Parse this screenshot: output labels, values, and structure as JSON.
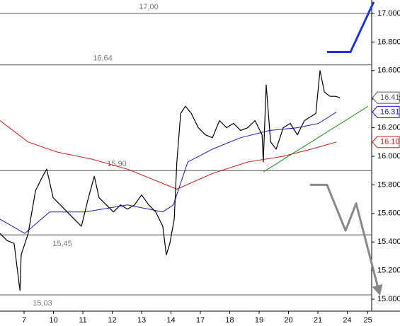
{
  "chart_data": {
    "type": "line",
    "xlim": [
      -0.82,
      11.83
    ],
    "ylim": [
      14.916,
      17.094
    ],
    "xticks": [
      {
        "value": 0,
        "label": "7"
      },
      {
        "value": 1,
        "label": "10"
      },
      {
        "value": 2,
        "label": "11"
      },
      {
        "value": 3,
        "label": "12"
      },
      {
        "value": 4,
        "label": "13"
      },
      {
        "value": 5,
        "label": "14"
      },
      {
        "value": 6,
        "label": "17"
      },
      {
        "value": 7,
        "label": "18"
      },
      {
        "value": 8,
        "label": "19"
      },
      {
        "value": 9,
        "label": "20"
      },
      {
        "value": 10,
        "label": "21"
      },
      {
        "value": 11,
        "label": "24"
      },
      {
        "value": 11.7,
        "label": "25"
      }
    ],
    "yticks": [
      {
        "value": 15,
        "label": "15.000"
      },
      {
        "value": 15.2,
        "label": "15.200"
      },
      {
        "value": 15.4,
        "label": "15.400"
      },
      {
        "value": 15.6,
        "label": "15.600"
      },
      {
        "value": 15.8,
        "label": "15.800"
      },
      {
        "value": 16,
        "label": "16.000"
      },
      {
        "value": 16.2,
        "label": "16.200"
      },
      {
        "value": 16.4,
        "label": "16.400"
      },
      {
        "value": 16.6,
        "label": "16.600"
      },
      {
        "value": 16.8,
        "label": "16.800"
      },
      {
        "value": 17,
        "label": "17.000"
      }
    ],
    "series": [
      {
        "color": "#000000",
        "x": [
          -0.82,
          -0.58,
          -0.34,
          -0.14,
          -0.1,
          0.14,
          0.39,
          0.63,
          0.77,
          0.99,
          1.23,
          1.47,
          1.71,
          1.95,
          2.19,
          2.39,
          2.55,
          2.8,
          3.04,
          3.28,
          3.52,
          3.76,
          4,
          4.24,
          4.48,
          4.72,
          4.84,
          4.96,
          5.11,
          5.2,
          5.33,
          5.49,
          5.69,
          5.93,
          6.17,
          6.41,
          6.65,
          6.89,
          7.13,
          7.37,
          7.61,
          7.86,
          8.1,
          8.14,
          8.24,
          8.39,
          8.58,
          8.82,
          9.06,
          9.3,
          9.54,
          9.78,
          9.93,
          10.07,
          10.22,
          10.41,
          10.6,
          10.75
        ],
        "values": [
          15.46,
          15.41,
          15.39,
          15.06,
          15.31,
          15.46,
          15.76,
          15.86,
          15.91,
          15.71,
          15.66,
          15.61,
          15.56,
          15.51,
          15.71,
          15.86,
          15.71,
          15.66,
          15.61,
          15.66,
          15.63,
          15.66,
          15.73,
          15.66,
          15.61,
          15.51,
          15.31,
          15.39,
          15.56,
          15.96,
          16.3,
          16.35,
          16.3,
          16.2,
          16.15,
          16.13,
          16.25,
          16.2,
          16.23,
          16.18,
          16.2,
          16.25,
          16.15,
          15.96,
          16.5,
          16.1,
          16.05,
          16.2,
          16.23,
          16.15,
          16.25,
          16.28,
          16.3,
          16.6,
          16.45,
          16.42,
          16.42,
          16.41
        ]
      },
      {
        "color": "#1a1acc",
        "x": [
          -0.82,
          0.02,
          0.87,
          2.07,
          3.52,
          4.72,
          5.08,
          5.57,
          6.41,
          7.37,
          8.34,
          9.3,
          10.02,
          10.63
        ],
        "values": [
          15.56,
          15.46,
          15.61,
          15.61,
          15.66,
          15.61,
          15.66,
          15.96,
          16.05,
          16.13,
          16.18,
          16.2,
          16.23,
          16.31
        ]
      },
      {
        "color": "#cc1a1a",
        "x": [
          -0.82,
          0.14,
          1.11,
          2.31,
          3.52,
          4.72,
          5.2,
          6.41,
          7.61,
          8.82,
          9.78,
          10.63
        ],
        "values": [
          16.25,
          16.1,
          16.03,
          15.98,
          15.91,
          15.81,
          15.77,
          15.88,
          15.96,
          16.0,
          16.05,
          16.1
        ]
      }
    ],
    "levels": [
      {
        "value": 17,
        "label": "17,00"
      },
      {
        "value": 16.64,
        "label": "16,64"
      },
      {
        "value": 15.9,
        "label": "15,90"
      },
      {
        "value": 15.45,
        "label": "15,45"
      },
      {
        "value": 15.03,
        "label": "15,03"
      }
    ],
    "trendline": {
      "color": "#1a8a1a",
      "x": [
        8.14,
        11.71
      ],
      "values": [
        15.89,
        16.35
      ]
    },
    "forecasts": [
      {
        "color": "#1a3ad6",
        "x": [
          10.31,
          11.11,
          11.9
        ],
        "values": [
          16.73,
          16.73,
          17.08
        ]
      },
      {
        "color": "#888888",
        "x": [
          9.73,
          10.31,
          10.94,
          11.3,
          12.07
        ],
        "values": [
          15.8,
          15.8,
          15.48,
          15.67,
          15.06
        ]
      }
    ],
    "price_tags": [
      {
        "value": 16.41,
        "label": "16.41",
        "color": "#555555"
      },
      {
        "value": 16.31,
        "label": "16.31",
        "color": "#1a1acc"
      },
      {
        "value": 16.1,
        "label": "16.10",
        "color": "#cc1a1a"
      }
    ]
  }
}
